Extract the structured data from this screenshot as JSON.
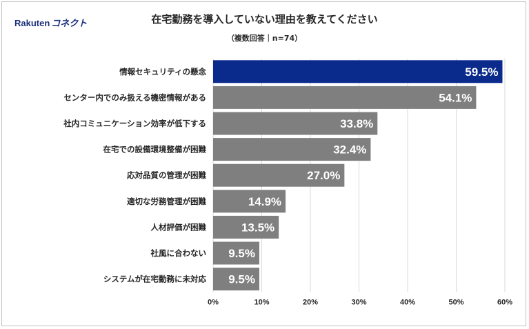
{
  "header": {
    "logo_part1": "Rakuten",
    "logo_part2": "コネクト"
  },
  "chart_data": {
    "type": "bar",
    "orientation": "horizontal",
    "title": "在宅勤務を導入していない理由を教えてください",
    "subtitle": "（複数回答｜n=74）",
    "categories": [
      "情報セキュリティの懸念",
      "センター内でのみ扱える機密情報がある",
      "社内コミュニケーション効率が低下する",
      "在宅での設備環境整備が困難",
      "応対品質の管理が困難",
      "適切な労務管理が困難",
      "人材評価が困難",
      "社風に合わない",
      "システムが在宅勤務に未対応"
    ],
    "values": [
      59.5,
      54.1,
      33.8,
      32.4,
      27.0,
      14.9,
      13.5,
      9.5,
      9.5
    ],
    "value_labels": [
      "59.5%",
      "54.1%",
      "33.8%",
      "32.4%",
      "27.0%",
      "14.9%",
      "13.5%",
      "9.5%",
      "9.5%"
    ],
    "highlight_index": 0,
    "colors": {
      "highlight": "#0a2a8c",
      "default": "#7f7f7f",
      "grid": "#d9d9d9"
    },
    "xlim": [
      0,
      60
    ],
    "x_ticks": [
      0,
      10,
      20,
      30,
      40,
      50,
      60
    ],
    "x_tick_labels": [
      "0%",
      "10%",
      "20%",
      "30%",
      "40%",
      "50%",
      "60%"
    ],
    "grid": true
  }
}
